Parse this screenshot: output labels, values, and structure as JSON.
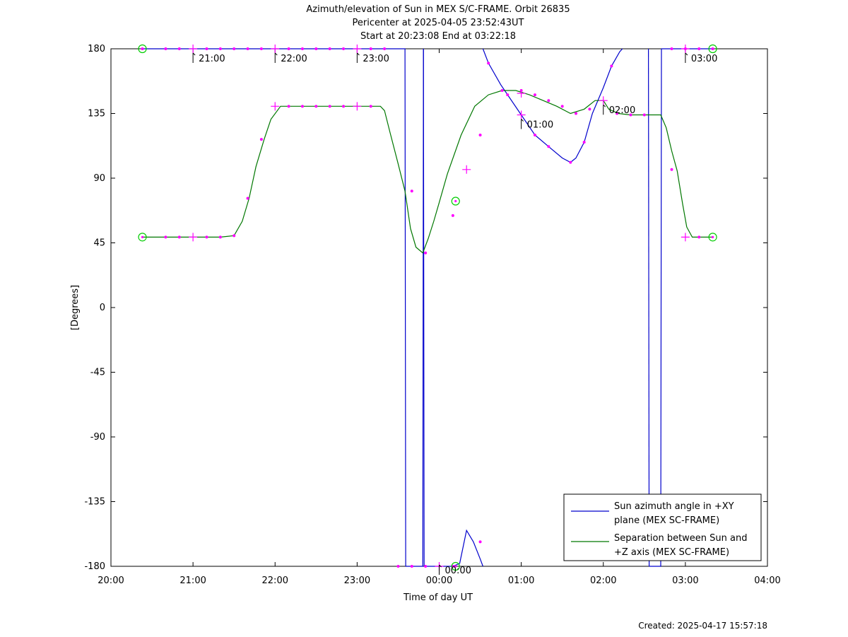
{
  "header": {
    "title_line1": "Azimuth/elevation of Sun in MEX S/C-FRAME.  Orbit 26835",
    "title_line2": "Pericenter at 2025-04-05 23:52:43UT",
    "title_line3": "Start at 20:23:08 End at 03:22:18"
  },
  "footer": {
    "created": "Created: 2025-04-17 15:57:18"
  },
  "colors": {
    "azimuth": "#0000cc",
    "separation": "#007700",
    "marker": "#ff00ff",
    "endpoint": "#00cc00"
  },
  "chart_data": {
    "type": "line",
    "xlabel": "Time of day UT",
    "ylabel": "[Degrees]",
    "xlim": [
      0,
      480
    ],
    "ylim": [
      -180,
      180
    ],
    "x_ticks": [
      {
        "v": 0,
        "label": "20:00"
      },
      {
        "v": 60,
        "label": "21:00"
      },
      {
        "v": 120,
        "label": "22:00"
      },
      {
        "v": 180,
        "label": "23:00"
      },
      {
        "v": 240,
        "label": "00:00"
      },
      {
        "v": 300,
        "label": "01:00"
      },
      {
        "v": 360,
        "label": "02:00"
      },
      {
        "v": 420,
        "label": "03:00"
      },
      {
        "v": 480,
        "label": "04:00"
      }
    ],
    "y_ticks": [
      {
        "v": 180,
        "label": "180"
      },
      {
        "v": 135,
        "label": "135"
      },
      {
        "v": 90,
        "label": "90"
      },
      {
        "v": 45,
        "label": "45"
      },
      {
        "v": 0,
        "label": "0"
      },
      {
        "v": -45,
        "label": "-45"
      },
      {
        "v": -90,
        "label": "-90"
      },
      {
        "v": -135,
        "label": "-135"
      },
      {
        "v": -180,
        "label": "-180"
      }
    ],
    "hour_annotations": [
      {
        "series": "azimuth",
        "x": 60,
        "y": 180,
        "label": "21:00"
      },
      {
        "series": "azimuth",
        "x": 120,
        "y": 180,
        "label": "22:00"
      },
      {
        "series": "azimuth",
        "x": 180,
        "y": 180,
        "label": "23:00"
      },
      {
        "series": "azimuth",
        "x": 240,
        "y": -180,
        "label": "00:00"
      },
      {
        "series": "azimuth",
        "x": 300,
        "y": 134,
        "label": "01:00"
      },
      {
        "series": "separation",
        "x": 360,
        "y": 144,
        "label": "02:00"
      },
      {
        "series": "azimuth",
        "x": 420,
        "y": 180,
        "label": "03:00"
      }
    ],
    "series": [
      {
        "key": "azimuth",
        "name": "Sun azimuth angle in +XY plane (MEX SC-FRAME)",
        "name_line1": "Sun azimuth angle in +XY",
        "name_line2": "plane (MEX SC-FRAME)",
        "segments": [
          [
            [
              23,
              180
            ],
            [
              40,
              180
            ],
            [
              60,
              180
            ],
            [
              80,
              180
            ],
            [
              100,
              180
            ],
            [
              120,
              180
            ],
            [
              140,
              180
            ],
            [
              160,
              180
            ],
            [
              180,
              180
            ],
            [
              200,
              180
            ],
            [
              215,
              180
            ],
            [
              215.5,
              -180
            ]
          ],
          [
            [
              215.5,
              -180
            ],
            [
              228,
              -180
            ],
            [
              228.5,
              180
            ]
          ],
          [
            [
              228.5,
              180
            ],
            [
              229,
              -180
            ],
            [
              240,
              -180
            ],
            [
              250,
              -180
            ],
            [
              255,
              -178
            ],
            [
              260,
              -155
            ],
            [
              265,
              -163
            ],
            [
              270,
              -175
            ],
            [
              272,
              -180
            ]
          ],
          [
            [
              272,
              180
            ],
            [
              276,
              170
            ],
            [
              285,
              155
            ],
            [
              300,
              134
            ],
            [
              310,
              120
            ],
            [
              320,
              112
            ],
            [
              330,
              104
            ],
            [
              336,
              101
            ],
            [
              340,
              104
            ],
            [
              346,
              115
            ],
            [
              352,
              135
            ],
            [
              360,
              153
            ],
            [
              366,
              168
            ],
            [
              372,
              178
            ],
            [
              374,
              180
            ]
          ],
          [
            [
              393,
              180
            ],
            [
              393.5,
              -180
            ]
          ],
          [
            [
              393.5,
              -180
            ],
            [
              402,
              -180
            ],
            [
              402.5,
              180
            ]
          ],
          [
            [
              402.5,
              180
            ],
            [
              410,
              180
            ],
            [
              420,
              180
            ],
            [
              430,
              180
            ],
            [
              440,
              180
            ]
          ]
        ],
        "markers": [
          [
            23,
            180
          ],
          [
            40,
            180
          ],
          [
            50,
            180
          ],
          [
            70,
            180
          ],
          [
            80,
            180
          ],
          [
            90,
            180
          ],
          [
            100,
            180
          ],
          [
            110,
            180
          ],
          [
            130,
            180
          ],
          [
            140,
            180
          ],
          [
            150,
            180
          ],
          [
            160,
            180
          ],
          [
            170,
            180
          ],
          [
            190,
            180
          ],
          [
            200,
            180
          ],
          [
            210,
            -180
          ],
          [
            220,
            -180
          ],
          [
            230,
            -180
          ],
          [
            250,
            -180
          ],
          [
            270,
            -163
          ],
          [
            276,
            170
          ],
          [
            290,
            148
          ],
          [
            310,
            120
          ],
          [
            320,
            112
          ],
          [
            336,
            101
          ],
          [
            346,
            115
          ],
          [
            366,
            168
          ],
          [
            410,
            180
          ],
          [
            420,
            180
          ],
          [
            430,
            180
          ],
          [
            440,
            180
          ]
        ],
        "hour_markers": [
          [
            60,
            180
          ],
          [
            120,
            180
          ],
          [
            180,
            180
          ],
          [
            240,
            -180
          ],
          [
            300,
            134
          ],
          [
            420,
            180
          ]
        ]
      },
      {
        "key": "separation",
        "name": "Separation between Sun and +Z axis (MEX SC-FRAME)",
        "name_line1": "Separation between Sun and",
        "name_line2": "+Z axis (MEX SC-FRAME)",
        "segments": [
          [
            [
              23,
              49
            ],
            [
              40,
              49
            ],
            [
              60,
              49
            ],
            [
              80,
              49
            ],
            [
              90,
              50
            ],
            [
              96,
              60
            ],
            [
              101,
              76
            ],
            [
              106,
              98
            ],
            [
              112,
              117
            ],
            [
              117,
              131
            ],
            [
              124,
              140
            ],
            [
              140,
              140
            ],
            [
              160,
              140
            ],
            [
              180,
              140
            ],
            [
              197,
              140
            ],
            [
              200,
              137
            ],
            [
              204,
              122
            ],
            [
              210,
              100
            ],
            [
              215,
              81
            ],
            [
              219,
              55
            ],
            [
              223,
              42
            ],
            [
              228,
              38
            ],
            [
              232,
              48
            ],
            [
              236,
              60
            ],
            [
              240,
              73
            ],
            [
              246,
              93
            ],
            [
              256,
              120
            ],
            [
              266,
              140
            ],
            [
              276,
              148
            ],
            [
              286,
              151
            ],
            [
              296,
              151
            ],
            [
              306,
              148
            ],
            [
              316,
              144
            ],
            [
              326,
              140
            ],
            [
              336,
              135
            ],
            [
              346,
              138
            ],
            [
              354,
              144
            ],
            [
              360,
              144
            ],
            [
              364,
              138
            ],
            [
              371,
              135
            ],
            [
              380,
              134
            ],
            [
              392,
              134
            ],
            [
              402,
              134
            ],
            [
              406,
              125
            ],
            [
              410,
              109
            ],
            [
              414,
              95
            ],
            [
              418,
              72
            ],
            [
              421,
              56
            ],
            [
              425,
              49
            ],
            [
              440,
              49
            ]
          ]
        ],
        "markers": [
          [
            40,
            49
          ],
          [
            50,
            49
          ],
          [
            70,
            49
          ],
          [
            80,
            49
          ],
          [
            90,
            50
          ],
          [
            100,
            76
          ],
          [
            110,
            117
          ],
          [
            130,
            140
          ],
          [
            140,
            140
          ],
          [
            150,
            140
          ],
          [
            160,
            140
          ],
          [
            170,
            140
          ],
          [
            190,
            140
          ],
          [
            220,
            81
          ],
          [
            230,
            38
          ],
          [
            250,
            64
          ],
          [
            270,
            120
          ],
          [
            286,
            151
          ],
          [
            300,
            151
          ],
          [
            310,
            148
          ],
          [
            320,
            144
          ],
          [
            330,
            140
          ],
          [
            340,
            135
          ],
          [
            350,
            138
          ],
          [
            370,
            135
          ],
          [
            380,
            134
          ],
          [
            390,
            134
          ],
          [
            410,
            96
          ],
          [
            430,
            49
          ]
        ],
        "hour_markers": [
          [
            60,
            49
          ],
          [
            120,
            140
          ],
          [
            180,
            140
          ],
          [
            260,
            96
          ],
          [
            300,
            149
          ],
          [
            360,
            144
          ],
          [
            420,
            49
          ]
        ]
      }
    ],
    "endpoint_circles": [
      [
        23,
        180
      ],
      [
        23,
        49
      ],
      [
        440,
        180
      ],
      [
        440,
        49
      ],
      [
        252,
        -180
      ],
      [
        252,
        74
      ]
    ]
  }
}
